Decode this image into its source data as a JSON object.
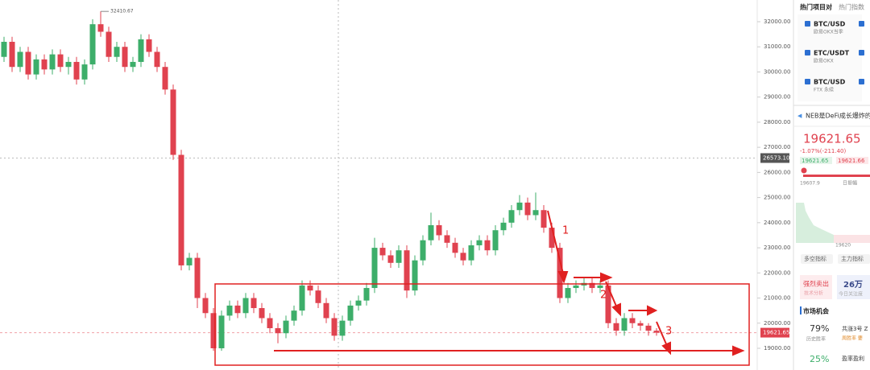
{
  "chart_data": {
    "type": "candlestick",
    "up_color": "#3dae6a",
    "down_color": "#e0424f",
    "ylim": [
      18700,
      32900
    ],
    "yticks": [
      {
        "value": 19000,
        "label": "19000.00"
      },
      {
        "value": 20000,
        "label": "20000.00"
      },
      {
        "value": 21000,
        "label": "21000.00"
      },
      {
        "value": 22000,
        "label": "22000.00"
      },
      {
        "value": 23000,
        "label": "23000.00"
      },
      {
        "value": 24000,
        "label": "24000.00"
      },
      {
        "value": 25000,
        "label": "25000.00"
      },
      {
        "value": 26000,
        "label": "26000.00"
      },
      {
        "value": 27000,
        "label": "27000.00"
      },
      {
        "value": 28000,
        "label": "28000.00"
      },
      {
        "value": 29000,
        "label": "29000.00"
      },
      {
        "value": 30000,
        "label": "30000.00"
      },
      {
        "value": 31000,
        "label": "31000.00"
      },
      {
        "value": 32000,
        "label": "32000.00"
      }
    ],
    "open": [
      30600,
      31200,
      30200,
      30800,
      29900,
      30500,
      30100,
      30700,
      30200,
      30400,
      29700,
      30300,
      31900,
      31600,
      30600,
      31000,
      30200,
      30400,
      31300,
      30800,
      30200,
      29300,
      26700,
      22300,
      22600,
      21000,
      20400,
      19000,
      20300,
      20700,
      20400,
      21000,
      20600,
      20200,
      19800,
      19600,
      20100,
      20500,
      21500,
      21300,
      20800,
      20200,
      19500,
      20100,
      20700,
      20900,
      21400,
      23000,
      22700,
      22400,
      22900,
      21300,
      22500,
      23300,
      23900,
      23500,
      23200,
      22800,
      22500,
      23100,
      23300,
      22900,
      23700,
      24000,
      24500,
      24800,
      24300,
      24500,
      23800,
      23000,
      21000,
      21400,
      21500,
      21600,
      21400,
      21500,
      20000,
      19700,
      20200,
      20000,
      19900,
      19700
    ],
    "close": [
      31200,
      30200,
      30800,
      29900,
      30500,
      30100,
      30700,
      30200,
      30400,
      29700,
      30300,
      31900,
      31600,
      30600,
      31000,
      30200,
      30400,
      31300,
      30800,
      30200,
      29300,
      26700,
      22300,
      22600,
      21000,
      20400,
      19000,
      20300,
      20700,
      20400,
      21000,
      20600,
      20200,
      19800,
      19600,
      20100,
      20500,
      21500,
      21300,
      20800,
      20200,
      19500,
      20100,
      20700,
      20900,
      21400,
      23000,
      22700,
      22400,
      22900,
      21300,
      22500,
      23300,
      23900,
      23500,
      23200,
      22800,
      22500,
      23100,
      23300,
      22900,
      23700,
      24000,
      24500,
      24800,
      24300,
      24500,
      23800,
      23000,
      21000,
      21400,
      21500,
      21600,
      21400,
      21500,
      20000,
      19700,
      20200,
      20000,
      19900,
      19700,
      19621.65
    ],
    "high": [
      31400,
      31400,
      31000,
      31000,
      30700,
      30700,
      30900,
      30900,
      30600,
      30600,
      30500,
      32100,
      32410.67,
      31800,
      31200,
      31200,
      30600,
      31500,
      31500,
      31000,
      30400,
      29500,
      26900,
      22800,
      22800,
      21200,
      20600,
      20500,
      20900,
      20900,
      21200,
      21200,
      20800,
      20400,
      20000,
      20300,
      20700,
      21700,
      21700,
      21500,
      21000,
      20400,
      20300,
      20900,
      21100,
      21600,
      23400,
      23200,
      22900,
      23100,
      23100,
      22700,
      23500,
      24400,
      24100,
      23700,
      23400,
      23000,
      23300,
      23500,
      23500,
      23900,
      24200,
      24700,
      25100,
      25000,
      25200,
      24700,
      24000,
      23200,
      21600,
      21700,
      21800,
      21800,
      21700,
      21700,
      20200,
      20400,
      20400,
      20100,
      20000,
      19800
    ],
    "low": [
      30400,
      30000,
      30000,
      29700,
      29700,
      29900,
      29900,
      30000,
      29900,
      29500,
      29500,
      30100,
      31400,
      30400,
      30400,
      30000,
      30000,
      30200,
      30600,
      30000,
      29100,
      26500,
      22100,
      22100,
      20600,
      20200,
      18900,
      18900,
      20100,
      20200,
      20200,
      20400,
      20000,
      19600,
      19200,
      19400,
      19900,
      20300,
      21100,
      20600,
      20000,
      19300,
      19300,
      19900,
      20500,
      20700,
      21200,
      22500,
      22200,
      22200,
      21000,
      21100,
      22300,
      23100,
      23300,
      23000,
      22600,
      22300,
      22300,
      22900,
      22700,
      22700,
      23500,
      23800,
      24300,
      24100,
      24100,
      23600,
      22800,
      20800,
      20800,
      21200,
      21300,
      21200,
      21200,
      19800,
      19500,
      19500,
      19800,
      19700,
      19500,
      19500
    ],
    "high_label": "32410.67",
    "crosshair_price": {
      "value": 26573.1,
      "label": "26573.10"
    },
    "last_price": {
      "value": 19621.65,
      "label": "19621.65"
    },
    "annotations": [
      "1",
      "2",
      "3"
    ]
  },
  "side_panel": {
    "tabs": [
      "热门项目对",
      "热门指数"
    ],
    "pairs": [
      {
        "name": "BTC/USD",
        "venue": "欧易OKX当季"
      },
      {
        "name": "ETC/USDT",
        "venue": "欧易OKX"
      },
      {
        "name": "BTC/USD",
        "venue": "FTX 永续"
      }
    ],
    "news": "NEB是DeFi成长爆炸的",
    "price": "19621.65",
    "change": "-1.07%(-211.40)",
    "bid": "19621.65",
    "ask": "19621.66",
    "low": "19607.9",
    "range_label": "日振幅",
    "mini_label": "19620",
    "buttons": [
      "多空指标",
      "主力指标"
    ],
    "signal": "强烈卖出",
    "signal_sub": "技术分析",
    "attention": "26万",
    "attention_sub": "今日关注度",
    "section": "市场机会",
    "win_rate": "79%",
    "win_rate_sub": "历史胜率",
    "stat": "共涨3号 Z",
    "stat_sub": "周胜率 要",
    "rate2": "25%",
    "rate2_sub": "盈率盈利"
  }
}
